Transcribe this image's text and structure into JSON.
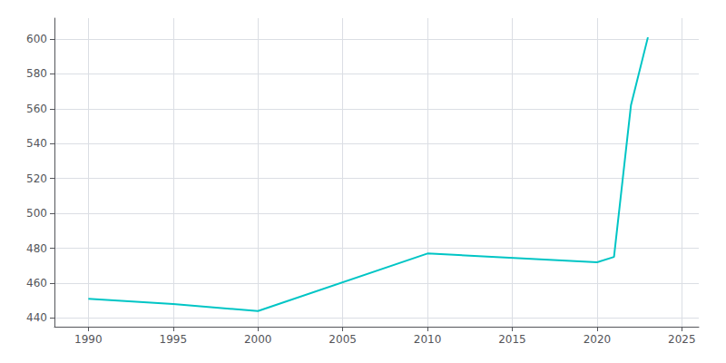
{
  "chart_data": {
    "type": "line",
    "x": [
      1990,
      1995,
      2000,
      2010,
      2020,
      2021,
      2022,
      2023
    ],
    "values": [
      451,
      448,
      444,
      477,
      472,
      475,
      562,
      601
    ],
    "color": "#00C5C5",
    "xlim": [
      1988,
      2026
    ],
    "ylim": [
      435,
      612
    ],
    "xticks": [
      1990,
      1995,
      2000,
      2005,
      2010,
      2015,
      2020,
      2025
    ],
    "yticks": [
      440,
      460,
      480,
      500,
      520,
      540,
      560,
      580,
      600
    ],
    "grid": true
  }
}
